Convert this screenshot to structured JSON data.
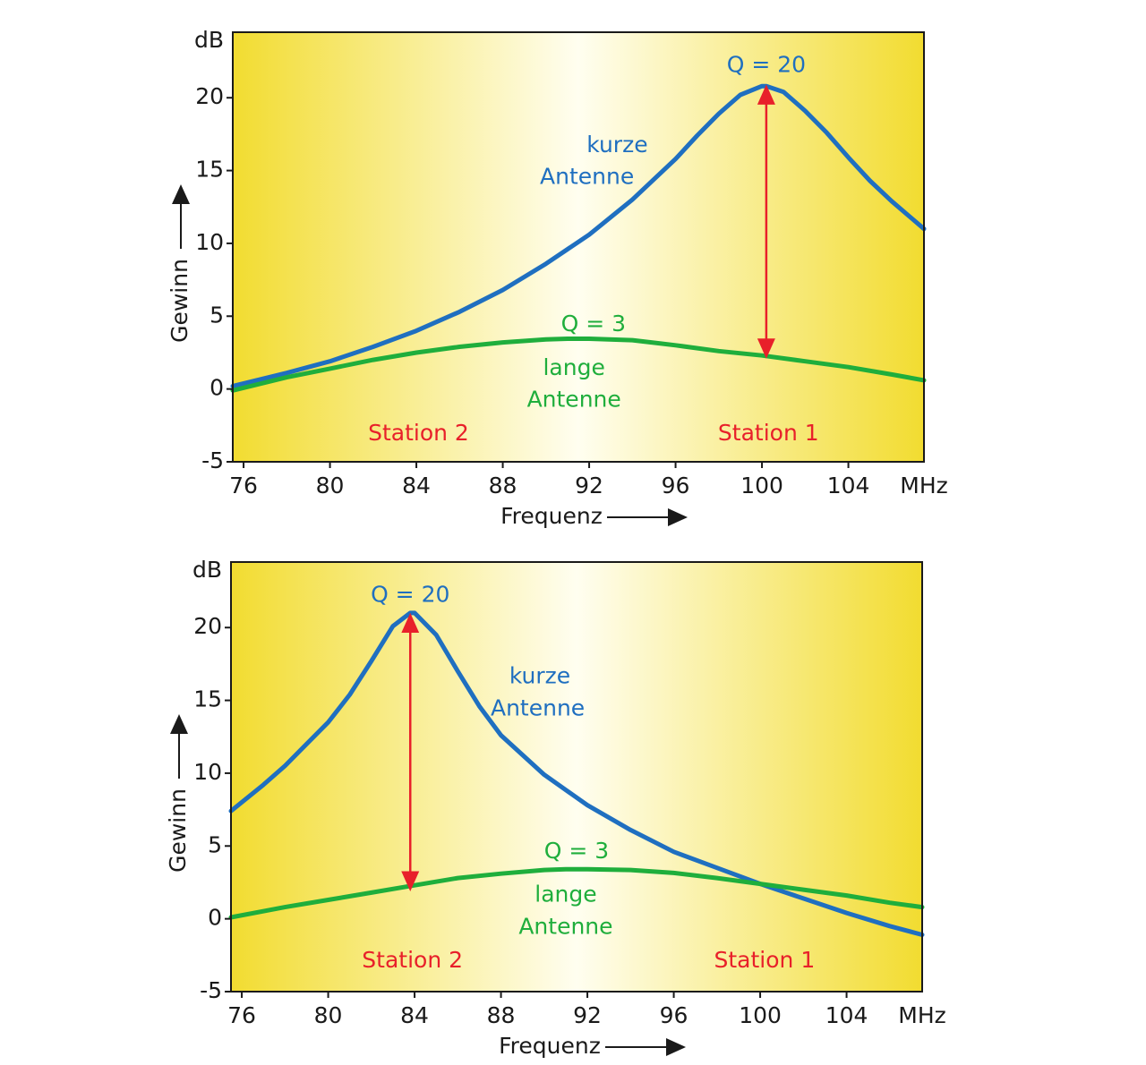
{
  "colors": {
    "edge": "#f2dc30",
    "center": "#fffef0",
    "short_antenna": "#1f6fc0",
    "long_antenna": "#1fae3c",
    "marker": "#e8202a",
    "axis": "#1a1a1a"
  },
  "chart_data": [
    {
      "type": "line",
      "xlabel": "Frequenz",
      "ylabel": "Gewinn",
      "x_unit": "MHz",
      "y_unit": "dB",
      "xlim": [
        75.5,
        107.5
      ],
      "ylim": [
        -5,
        24.5
      ],
      "xticks": [
        76,
        80,
        84,
        88,
        92,
        96,
        100,
        104
      ],
      "yticks": [
        -5,
        0,
        5,
        10,
        15,
        20
      ],
      "series": [
        {
          "name": "kurze Antenne",
          "color": "#1f6fc0",
          "x": [
            75.5,
            78,
            80,
            82,
            84,
            86,
            88,
            90,
            92,
            94,
            96,
            97,
            98,
            99,
            100,
            100.2,
            101,
            102,
            103,
            104,
            105,
            106,
            107.5
          ],
          "y": [
            0.2,
            1.1,
            1.9,
            2.9,
            4.0,
            5.3,
            6.8,
            8.6,
            10.6,
            13.0,
            15.8,
            17.4,
            18.9,
            20.2,
            20.8,
            20.8,
            20.4,
            19.1,
            17.6,
            15.9,
            14.3,
            12.9,
            11.0
          ]
        },
        {
          "name": "lange Antenne",
          "color": "#1fae3c",
          "x": [
            75.5,
            78,
            80,
            82,
            84,
            86,
            88,
            90,
            91,
            92,
            94,
            96,
            98,
            100,
            102,
            104,
            106,
            107.5
          ],
          "y": [
            -0.1,
            0.8,
            1.4,
            2.0,
            2.5,
            2.9,
            3.2,
            3.4,
            3.45,
            3.45,
            3.35,
            3.0,
            2.6,
            2.3,
            1.9,
            1.5,
            1.0,
            0.6
          ]
        }
      ],
      "annotations": [
        {
          "text": "Q = 20",
          "x": 100.2,
          "y": 22.2,
          "color": "#1f6fc0"
        },
        {
          "text": "kurze",
          "x": 93.3,
          "y": 16.7,
          "color": "#1f6fc0"
        },
        {
          "text": "Antenne",
          "x": 91.9,
          "y": 14.5,
          "color": "#1f6fc0"
        },
        {
          "text": "Q = 3",
          "x": 92.2,
          "y": 4.4,
          "color": "#1fae3c"
        },
        {
          "text": "lange",
          "x": 91.3,
          "y": 1.4,
          "color": "#1fae3c"
        },
        {
          "text": "Antenne",
          "x": 91.3,
          "y": -0.8,
          "color": "#1fae3c"
        },
        {
          "text": "Station 2",
          "x": 84.1,
          "y": -3.1,
          "color": "#e8202a"
        },
        {
          "text": "Station 1",
          "x": 100.3,
          "y": -3.1,
          "color": "#e8202a"
        }
      ],
      "marker": {
        "x": 100.2,
        "y_from": 20.3,
        "y_to": 2.7,
        "color": "#e8202a"
      }
    },
    {
      "type": "line",
      "xlabel": "Frequenz",
      "ylabel": "Gewinn",
      "x_unit": "MHz",
      "y_unit": "dB",
      "xlim": [
        75.5,
        107.5
      ],
      "ylim": [
        -5,
        24.5
      ],
      "xticks": [
        76,
        80,
        84,
        88,
        92,
        96,
        100,
        104
      ],
      "yticks": [
        -5,
        0,
        5,
        10,
        15,
        20
      ],
      "series": [
        {
          "name": "kurze Antenne",
          "color": "#1f6fc0",
          "x": [
            75.5,
            77,
            78,
            79,
            80,
            81,
            82,
            83,
            83.8,
            84,
            85,
            86,
            87,
            88,
            90,
            92,
            94,
            96,
            98,
            100,
            102,
            104,
            106,
            107.5
          ],
          "y": [
            7.4,
            9.2,
            10.5,
            12.0,
            13.5,
            15.4,
            17.7,
            20.1,
            21.0,
            21.0,
            19.5,
            17.0,
            14.6,
            12.6,
            9.9,
            7.8,
            6.1,
            4.6,
            3.5,
            2.4,
            1.4,
            0.4,
            -0.5,
            -1.1
          ]
        },
        {
          "name": "lange Antenne",
          "color": "#1fae3c",
          "x": [
            75.5,
            78,
            80,
            82,
            84,
            86,
            88,
            90,
            91,
            92,
            94,
            96,
            98,
            100,
            102,
            104,
            106,
            107.5
          ],
          "y": [
            0.1,
            0.8,
            1.3,
            1.8,
            2.3,
            2.8,
            3.1,
            3.35,
            3.4,
            3.4,
            3.35,
            3.15,
            2.8,
            2.4,
            2.0,
            1.6,
            1.1,
            0.8
          ]
        }
      ],
      "annotations": [
        {
          "text": "Q = 20",
          "x": 83.8,
          "y": 22.2,
          "color": "#1f6fc0"
        },
        {
          "text": "kurze",
          "x": 89.8,
          "y": 16.6,
          "color": "#1f6fc0"
        },
        {
          "text": "Antenne",
          "x": 89.7,
          "y": 14.4,
          "color": "#1f6fc0"
        },
        {
          "text": "Q = 3",
          "x": 91.5,
          "y": 4.6,
          "color": "#1fae3c"
        },
        {
          "text": "lange",
          "x": 91.0,
          "y": 1.6,
          "color": "#1fae3c"
        },
        {
          "text": "Antenne",
          "x": 91.0,
          "y": -0.6,
          "color": "#1fae3c"
        },
        {
          "text": "Station 2",
          "x": 83.9,
          "y": -2.9,
          "color": "#e8202a"
        },
        {
          "text": "Station 1",
          "x": 100.2,
          "y": -2.9,
          "color": "#e8202a"
        }
      ],
      "marker": {
        "x": 83.8,
        "y_from": 20.4,
        "y_to": 2.5,
        "color": "#e8202a"
      }
    }
  ]
}
